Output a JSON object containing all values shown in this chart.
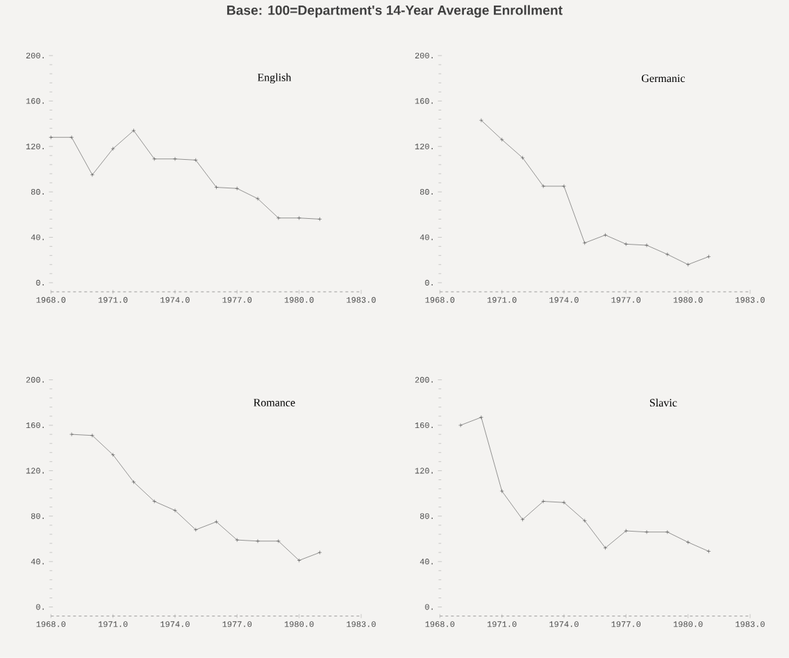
{
  "chart_data": [
    {
      "type": "line",
      "title": "English",
      "annotations": [
        "Base: 100=Department's 14-Year Average Enrollment"
      ],
      "x": [
        1968,
        1969,
        1970,
        1971,
        1972,
        1973,
        1974,
        1975,
        1976,
        1977,
        1978,
        1979,
        1980,
        1981
      ],
      "values": [
        128,
        128,
        95,
        118,
        134,
        109,
        109,
        108,
        84,
        83,
        74,
        57,
        57,
        56
      ],
      "color": "#3a3a3a",
      "marker": "cross",
      "line_style": "solid",
      "xlim": [
        1968,
        1983
      ],
      "ylim": [
        -8,
        200
      ],
      "xticks": [
        {
          "value": 1968,
          "label": "1968.0"
        },
        {
          "value": 1971,
          "label": "1971.0"
        },
        {
          "value": 1974,
          "label": "1974.0"
        },
        {
          "value": 1977,
          "label": "1977.0"
        },
        {
          "value": 1980,
          "label": "1980.0"
        },
        {
          "value": 1983,
          "label": "1983.0"
        }
      ],
      "yticks": [
        {
          "value": 0,
          "label": "0."
        },
        {
          "value": 40,
          "label": "40."
        },
        {
          "value": 80,
          "label": "80."
        },
        {
          "value": 120,
          "label": "120."
        },
        {
          "value": 160,
          "label": "160."
        },
        {
          "value": 200,
          "label": "200."
        }
      ]
    },
    {
      "type": "line",
      "title": "Germanic",
      "x": [
        1970,
        1971,
        1972,
        1973,
        1974,
        1975,
        1976,
        1977,
        1978,
        1979,
        1980,
        1981
      ],
      "values": [
        143,
        126,
        110,
        85,
        85,
        35,
        42,
        34,
        33,
        25,
        16,
        23
      ],
      "color": "#3a3a3a",
      "marker": "cross",
      "line_style": "solid",
      "xlim": [
        1968,
        1983
      ],
      "ylim": [
        -8,
        200
      ],
      "xticks": [
        {
          "value": 1968,
          "label": "1968.0"
        },
        {
          "value": 1971,
          "label": "1971.0"
        },
        {
          "value": 1974,
          "label": "1974.0"
        },
        {
          "value": 1977,
          "label": "1977.0"
        },
        {
          "value": 1980,
          "label": "1980.0"
        },
        {
          "value": 1983,
          "label": "1983.0"
        }
      ],
      "yticks": [
        {
          "value": 0,
          "label": "0."
        },
        {
          "value": 40,
          "label": "40."
        },
        {
          "value": 80,
          "label": "80."
        },
        {
          "value": 120,
          "label": "120."
        },
        {
          "value": 160,
          "label": "160."
        },
        {
          "value": 200,
          "label": "200."
        }
      ]
    },
    {
      "type": "line",
      "title": "Romance",
      "x": [
        1969,
        1970,
        1971,
        1972,
        1973,
        1974,
        1975,
        1976,
        1977,
        1978,
        1979,
        1980,
        1981
      ],
      "values": [
        152,
        151,
        134,
        110,
        93,
        85,
        68,
        75,
        59,
        58,
        58,
        41,
        48
      ],
      "color": "#3a3a3a",
      "marker": "cross",
      "line_style": "solid",
      "xlim": [
        1968,
        1983
      ],
      "ylim": [
        -8,
        200
      ],
      "xticks": [
        {
          "value": 1968,
          "label": "1968.0"
        },
        {
          "value": 1971,
          "label": "1971.0"
        },
        {
          "value": 1974,
          "label": "1974.0"
        },
        {
          "value": 1977,
          "label": "1977.0"
        },
        {
          "value": 1980,
          "label": "1980.0"
        },
        {
          "value": 1983,
          "label": "1983.0"
        }
      ],
      "yticks": [
        {
          "value": 0,
          "label": "0."
        },
        {
          "value": 40,
          "label": "40."
        },
        {
          "value": 80,
          "label": "80."
        },
        {
          "value": 120,
          "label": "120."
        },
        {
          "value": 160,
          "label": "160."
        },
        {
          "value": 200,
          "label": "200."
        }
      ]
    },
    {
      "type": "line",
      "title": "Slavic",
      "x": [
        1969,
        1970,
        1971,
        1972,
        1973,
        1974,
        1975,
        1976,
        1977,
        1978,
        1979,
        1980,
        1981
      ],
      "values": [
        160,
        167,
        102,
        77,
        93,
        92,
        76,
        52,
        67,
        66,
        66,
        57,
        49
      ],
      "color": "#3a3a3a",
      "marker": "cross",
      "line_style": "solid",
      "xlim": [
        1968,
        1983
      ],
      "ylim": [
        -8,
        200
      ],
      "xticks": [
        {
          "value": 1968,
          "label": "1968.0"
        },
        {
          "value": 1971,
          "label": "1971.0"
        },
        {
          "value": 1974,
          "label": "1974.0"
        },
        {
          "value": 1977,
          "label": "1977.0"
        },
        {
          "value": 1980,
          "label": "1980.0"
        },
        {
          "value": 1983,
          "label": "1983.0"
        }
      ],
      "yticks": [
        {
          "value": 0,
          "label": "0."
        },
        {
          "value": 40,
          "label": "40."
        },
        {
          "value": 80,
          "label": "80."
        },
        {
          "value": 120,
          "label": "120."
        },
        {
          "value": 160,
          "label": "160."
        },
        {
          "value": 200,
          "label": "200."
        }
      ]
    }
  ]
}
